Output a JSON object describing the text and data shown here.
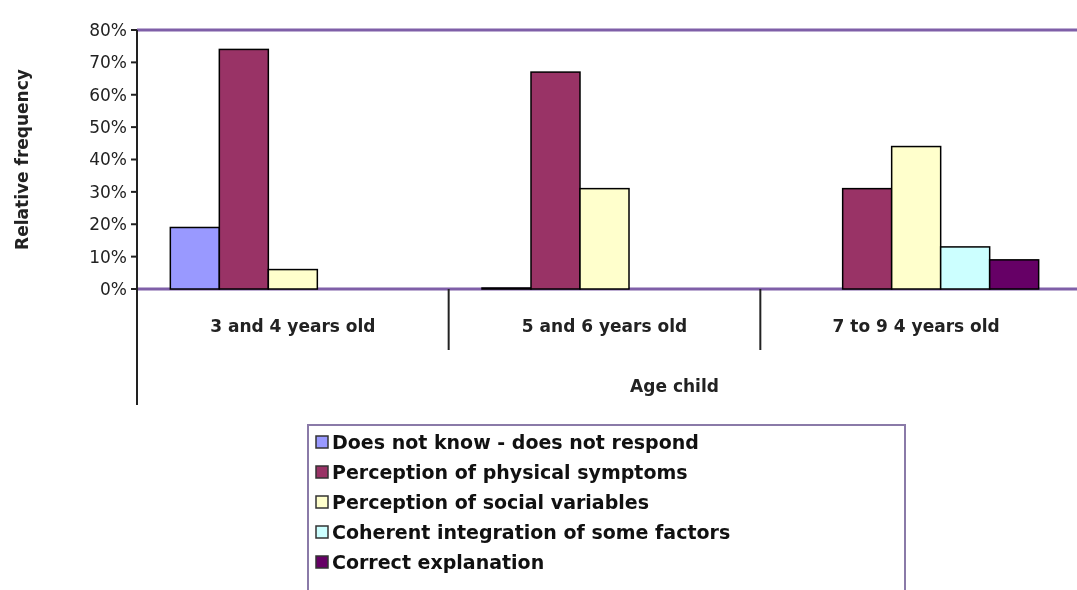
{
  "chart_data": {
    "type": "bar",
    "xlabel": "Age child",
    "ylabel": "Relative frequency",
    "categories": [
      "3 and 4 years old",
      "5 and 6 years old",
      "7 to 9 4 years old"
    ],
    "series": [
      {
        "name": "Does not know - does not respond",
        "color": "#9999ff",
        "values": [
          19,
          0.3,
          0
        ]
      },
      {
        "name": "Perception of physical symptoms",
        "color": "#993366",
        "values": [
          74,
          67,
          31
        ]
      },
      {
        "name": "Perception of social variables",
        "color": "#ffffcc",
        "values": [
          6,
          31,
          44
        ]
      },
      {
        "name": "Coherent integration of some factors",
        "color": "#ccffff",
        "values": [
          0,
          0,
          13
        ]
      },
      {
        "name": "Correct explanation",
        "color": "#660066",
        "values": [
          0,
          0,
          9
        ]
      }
    ],
    "ylim": [
      0,
      80
    ],
    "yticks": [
      {
        "value": 0,
        "label": "0%"
      },
      {
        "value": 10,
        "label": "10%"
      },
      {
        "value": 20,
        "label": "20%"
      },
      {
        "value": 30,
        "label": "30%"
      },
      {
        "value": 40,
        "label": "40%"
      },
      {
        "value": 50,
        "label": "50%"
      },
      {
        "value": 60,
        "label": "60%"
      },
      {
        "value": 70,
        "label": "70%"
      },
      {
        "value": 80,
        "label": "80%"
      }
    ],
    "legend": "bottom"
  }
}
